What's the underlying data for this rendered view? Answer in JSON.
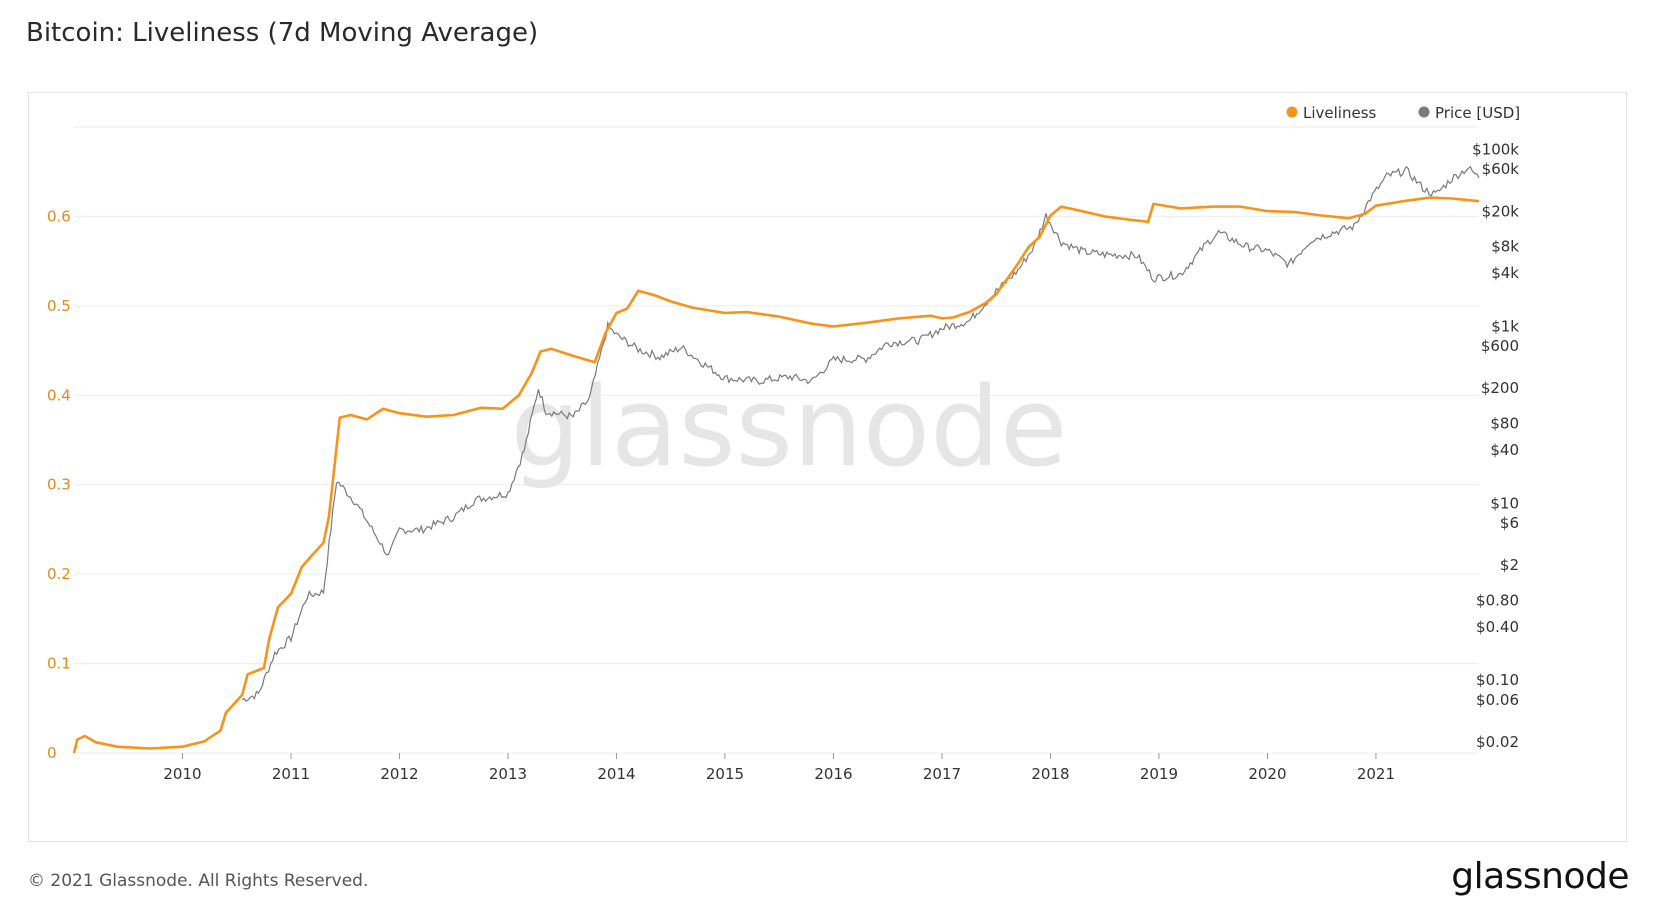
{
  "header": {
    "title": "Bitcoin: Liveliness (7d Moving Average)"
  },
  "footer": {
    "copyright": "© 2021 Glassnode. All Rights Reserved.",
    "brand": "glassnode"
  },
  "watermark": "glassnode",
  "colors": {
    "liveliness": "#f7931a",
    "price": "#7a7a7a",
    "grid": "#ececec",
    "left_axis_text": "#e08a1e"
  },
  "chart_data": {
    "type": "line",
    "title": "Bitcoin: Liveliness (7d Moving Average)",
    "x_ticks": [
      "2010",
      "2011",
      "2012",
      "2013",
      "2014",
      "2015",
      "2016",
      "2017",
      "2018",
      "2019",
      "2020",
      "2021"
    ],
    "xlim": [
      2009.0,
      2021.95
    ],
    "left_axis": {
      "ticks": [
        "0",
        "0.1",
        "0.2",
        "0.3",
        "0.4",
        "0.5",
        "0.6"
      ],
      "ylim": [
        0,
        0.7
      ]
    },
    "right_axis": {
      "scale": "log",
      "ticks": [
        {
          "label": "$100k",
          "value": 100000
        },
        {
          "label": "$60k",
          "value": 60000
        },
        {
          "label": "$20k",
          "value": 20000
        },
        {
          "label": "$8k",
          "value": 8000
        },
        {
          "label": "$4k",
          "value": 4000
        },
        {
          "label": "$1k",
          "value": 1000
        },
        {
          "label": "$600",
          "value": 600
        },
        {
          "label": "$200",
          "value": 200
        },
        {
          "label": "$80",
          "value": 80
        },
        {
          "label": "$40",
          "value": 40
        },
        {
          "label": "$10",
          "value": 10
        },
        {
          "label": "$6",
          "value": 6
        },
        {
          "label": "$2",
          "value": 2
        },
        {
          "label": "$0.80",
          "value": 0.8
        },
        {
          "label": "$0.40",
          "value": 0.4
        },
        {
          "label": "$0.10",
          "value": 0.1
        },
        {
          "label": "$0.06",
          "value": 0.06
        },
        {
          "label": "$0.02",
          "value": 0.02
        }
      ],
      "ylim": [
        0.015,
        180000
      ]
    },
    "legend": {
      "position": "top-right"
    },
    "grid": true,
    "series": [
      {
        "name": "Liveliness",
        "axis": "left",
        "points": [
          [
            2009.0,
            0.0
          ],
          [
            2009.03,
            0.015
          ],
          [
            2009.1,
            0.019
          ],
          [
            2009.2,
            0.012
          ],
          [
            2009.4,
            0.007
          ],
          [
            2009.7,
            0.005
          ],
          [
            2010.0,
            0.007
          ],
          [
            2010.2,
            0.013
          ],
          [
            2010.35,
            0.025
          ],
          [
            2010.4,
            0.045
          ],
          [
            2010.55,
            0.065
          ],
          [
            2010.6,
            0.088
          ],
          [
            2010.75,
            0.095
          ],
          [
            2010.8,
            0.128
          ],
          [
            2010.88,
            0.163
          ],
          [
            2011.0,
            0.178
          ],
          [
            2011.1,
            0.208
          ],
          [
            2011.2,
            0.222
          ],
          [
            2011.3,
            0.235
          ],
          [
            2011.35,
            0.265
          ],
          [
            2011.45,
            0.375
          ],
          [
            2011.55,
            0.378
          ],
          [
            2011.7,
            0.373
          ],
          [
            2011.85,
            0.385
          ],
          [
            2012.0,
            0.38
          ],
          [
            2012.25,
            0.376
          ],
          [
            2012.5,
            0.378
          ],
          [
            2012.75,
            0.386
          ],
          [
            2012.95,
            0.385
          ],
          [
            2013.1,
            0.4
          ],
          [
            2013.22,
            0.425
          ],
          [
            2013.3,
            0.449
          ],
          [
            2013.4,
            0.452
          ],
          [
            2013.6,
            0.444
          ],
          [
            2013.8,
            0.437
          ],
          [
            2013.9,
            0.47
          ],
          [
            2014.0,
            0.492
          ],
          [
            2014.1,
            0.497
          ],
          [
            2014.2,
            0.517
          ],
          [
            2014.35,
            0.512
          ],
          [
            2014.5,
            0.505
          ],
          [
            2014.7,
            0.498
          ],
          [
            2015.0,
            0.492
          ],
          [
            2015.2,
            0.493
          ],
          [
            2015.5,
            0.488
          ],
          [
            2015.8,
            0.48
          ],
          [
            2016.0,
            0.477
          ],
          [
            2016.3,
            0.481
          ],
          [
            2016.6,
            0.486
          ],
          [
            2016.9,
            0.489
          ],
          [
            2017.0,
            0.486
          ],
          [
            2017.1,
            0.487
          ],
          [
            2017.25,
            0.493
          ],
          [
            2017.4,
            0.503
          ],
          [
            2017.5,
            0.513
          ],
          [
            2017.6,
            0.53
          ],
          [
            2017.7,
            0.547
          ],
          [
            2017.8,
            0.566
          ],
          [
            2017.9,
            0.577
          ],
          [
            2018.0,
            0.601
          ],
          [
            2018.1,
            0.611
          ],
          [
            2018.25,
            0.607
          ],
          [
            2018.5,
            0.6
          ],
          [
            2018.75,
            0.596
          ],
          [
            2018.9,
            0.594
          ],
          [
            2018.95,
            0.614
          ],
          [
            2019.2,
            0.609
          ],
          [
            2019.5,
            0.611
          ],
          [
            2019.75,
            0.611
          ],
          [
            2020.0,
            0.606
          ],
          [
            2020.25,
            0.605
          ],
          [
            2020.5,
            0.601
          ],
          [
            2020.75,
            0.598
          ],
          [
            2020.9,
            0.603
          ],
          [
            2021.0,
            0.612
          ],
          [
            2021.25,
            0.617
          ],
          [
            2021.5,
            0.621
          ],
          [
            2021.7,
            0.62
          ],
          [
            2021.95,
            0.617
          ]
        ]
      },
      {
        "name": "Price [USD]",
        "axis": "right",
        "points": [
          [
            2010.55,
            0.06
          ],
          [
            2010.7,
            0.07
          ],
          [
            2010.85,
            0.2
          ],
          [
            2011.0,
            0.3
          ],
          [
            2011.15,
            0.9
          ],
          [
            2011.3,
            1.0
          ],
          [
            2011.42,
            18.0
          ],
          [
            2011.48,
            15.0
          ],
          [
            2011.6,
            10.0
          ],
          [
            2011.8,
            4.0
          ],
          [
            2011.9,
            2.5
          ],
          [
            2012.0,
            5.0
          ],
          [
            2012.2,
            5.0
          ],
          [
            2012.5,
            7.0
          ],
          [
            2012.7,
            11.0
          ],
          [
            2013.0,
            13.0
          ],
          [
            2013.15,
            40.0
          ],
          [
            2013.28,
            200.0
          ],
          [
            2013.35,
            110.0
          ],
          [
            2013.6,
            95.0
          ],
          [
            2013.75,
            150.0
          ],
          [
            2013.92,
            1000.0
          ],
          [
            2014.0,
            800.0
          ],
          [
            2014.2,
            550.0
          ],
          [
            2014.4,
            450.0
          ],
          [
            2014.6,
            580.0
          ],
          [
            2014.8,
            380.0
          ],
          [
            2015.0,
            260.0
          ],
          [
            2015.3,
            240.0
          ],
          [
            2015.6,
            270.0
          ],
          [
            2015.8,
            240.0
          ],
          [
            2016.0,
            420.0
          ],
          [
            2016.3,
            430.0
          ],
          [
            2016.5,
            650.0
          ],
          [
            2016.8,
            700.0
          ],
          [
            2017.0,
            950.0
          ],
          [
            2017.25,
            1150.0
          ],
          [
            2017.5,
            2500.0
          ],
          [
            2017.7,
            4300.0
          ],
          [
            2017.85,
            8000.0
          ],
          [
            2017.96,
            18000.0
          ],
          [
            2018.1,
            9000.0
          ],
          [
            2018.3,
            7000.0
          ],
          [
            2018.5,
            6500.0
          ],
          [
            2018.8,
            6300.0
          ],
          [
            2018.95,
            3500.0
          ],
          [
            2019.2,
            3900.0
          ],
          [
            2019.45,
            9000.0
          ],
          [
            2019.55,
            11500.0
          ],
          [
            2019.8,
            8000.0
          ],
          [
            2020.0,
            7200.0
          ],
          [
            2020.2,
            5000.0
          ],
          [
            2020.4,
            9500.0
          ],
          [
            2020.6,
            11500.0
          ],
          [
            2020.8,
            13500.0
          ],
          [
            2020.95,
            28000.0
          ],
          [
            2021.1,
            50000.0
          ],
          [
            2021.28,
            58000.0
          ],
          [
            2021.45,
            35000.0
          ],
          [
            2021.55,
            31000.0
          ],
          [
            2021.7,
            47000.0
          ],
          [
            2021.85,
            62000.0
          ],
          [
            2021.95,
            48000.0
          ]
        ]
      }
    ]
  }
}
